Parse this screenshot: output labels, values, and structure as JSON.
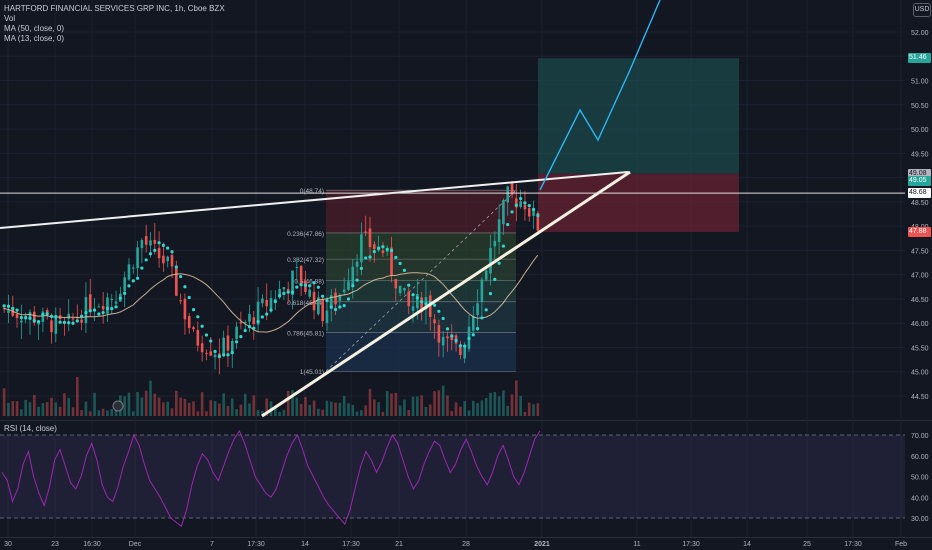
{
  "legend": {
    "title": "HARTFORD FINANCIAL SERVICES GRP INC, 1h, Cboe BZX",
    "vol": "Vol",
    "ma50": "MA (50, close, 0)",
    "ma13": "MA (13, close, 0)"
  },
  "rsi_label": "RSI (14, close)",
  "currency": "USD",
  "colors": {
    "background": "#131722",
    "up": "#26a69a",
    "down": "#ef5350",
    "ma13": "#2bd9d0",
    "ma50": "#e8c8a0",
    "rsi_line": "#9c27b0",
    "rsi_band": "#7e57c2",
    "target_zone": "#1e5a5a",
    "stop_zone": "#6b2230",
    "projection": "#29b6f6"
  },
  "price_tags": [
    {
      "label": "51.46",
      "bg": "#26a69a",
      "fg": "#ffffff",
      "value": 51.46
    },
    {
      "label": "49.08",
      "bg": "#b2b5be",
      "fg": "#131722",
      "value": 49.08
    },
    {
      "label": "49.05",
      "bg": "#26a69a",
      "fg": "#ffffff",
      "value": 48.92
    },
    {
      "label": "48.68",
      "bg": "#ffffff",
      "fg": "#131722",
      "value": 48.68
    },
    {
      "label": "47.88",
      "bg": "#ef5350",
      "fg": "#ffffff",
      "value": 47.88
    }
  ],
  "chart_data": {
    "type": "candlestick",
    "symbol": "HARTFORD FINANCIAL SERVICES GRP INC",
    "interval": "1h",
    "exchange": "Cboe BZX",
    "ylim": [
      44.2,
      52.9
    ],
    "y_ticks": [
      "52.00",
      "51.50",
      "51.00",
      "50.50",
      "50.00",
      "49.50",
      "49.00",
      "48.50",
      "48.00",
      "47.50",
      "47.00",
      "46.50",
      "46.00",
      "45.50",
      "45.00",
      "44.50"
    ],
    "x_ticks": [
      "30",
      "23",
      "16:30",
      "Dec",
      "7",
      "17:30",
      "14",
      "17:30",
      "21",
      "28",
      "2021",
      "11",
      "17:30",
      "14",
      "25",
      "17:30",
      "Feb"
    ],
    "fib_levels": [
      {
        "label": "0(48.74)",
        "value": 48.74
      },
      {
        "label": "0.236(47.86)",
        "value": 47.86
      },
      {
        "label": "0.382(47.32)",
        "value": 47.32
      },
      {
        "label": "0.5(46.88)",
        "value": 46.88
      },
      {
        "label": "0.618(46.44)",
        "value": 46.44
      },
      {
        "label": "0.786(45.81)",
        "value": 45.81
      },
      {
        "label": "1(45.01)",
        "value": 45.01
      }
    ],
    "position": {
      "entry": 49.08,
      "target": 51.46,
      "stop": 47.88
    },
    "horizontal_line": 48.68,
    "rsi": {
      "ylim": [
        25,
        75
      ],
      "ticks": [
        "70.00",
        "60.00",
        "50.00",
        "40.00",
        "30.00"
      ],
      "overbought": 70,
      "oversold": 30,
      "values": [
        52,
        48,
        38,
        44,
        56,
        62,
        50,
        42,
        36,
        45,
        58,
        63,
        55,
        47,
        44,
        50,
        60,
        66,
        58,
        46,
        40,
        38,
        45,
        55,
        62,
        70,
        65,
        56,
        48,
        44,
        40,
        35,
        30,
        28,
        26,
        34,
        46,
        55,
        61,
        58,
        52,
        48,
        55,
        62,
        68,
        72,
        66,
        58,
        50,
        46,
        42,
        40,
        44,
        52,
        60,
        66,
        70,
        63,
        55,
        50,
        45,
        40,
        36,
        33,
        30,
        27,
        34,
        45,
        55,
        62,
        58,
        52,
        57,
        64,
        70,
        66,
        58,
        50,
        44,
        48,
        56,
        62,
        67,
        65,
        58,
        52,
        56,
        63,
        68,
        62,
        55,
        50,
        46,
        52,
        60,
        65,
        58,
        50,
        46,
        52,
        60,
        68,
        72
      ]
    },
    "series": [
      {
        "name": "MA (13, close, 0)"
      },
      {
        "name": "MA (50, close, 0)"
      }
    ]
  }
}
